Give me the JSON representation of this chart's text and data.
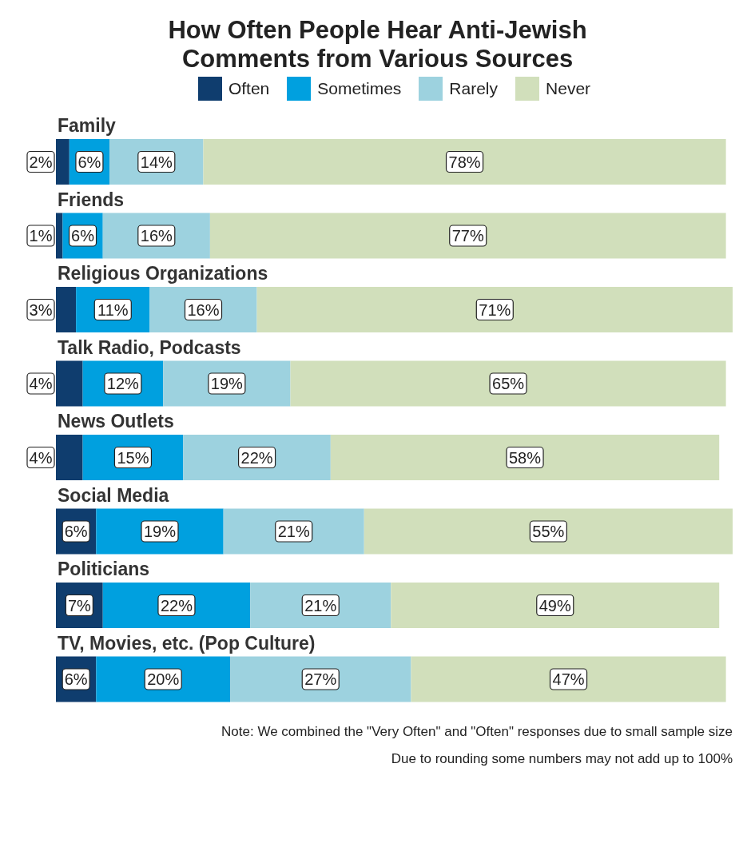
{
  "chart_data": {
    "type": "bar",
    "orientation": "horizontal",
    "stacked": true,
    "title": "How Often People Hear Anti-Jewish Comments from Various Sources",
    "legend": "top",
    "categories": [
      "Family",
      "Friends",
      "Religious Organizations",
      "Talk Radio, Podcasts",
      "News Outlets",
      "Social Media",
      "Politicians",
      "TV, Movies, etc. (Pop Culture)"
    ],
    "series": [
      {
        "name": "Often",
        "color": "#0f3d6e",
        "values": [
          2,
          1,
          3,
          4,
          4,
          6,
          7,
          6
        ],
        "value_labels": [
          "2%",
          "1%",
          "3%",
          "4%",
          "4%",
          "6%",
          "7%",
          "6%"
        ]
      },
      {
        "name": "Sometimes",
        "color": "#00a0df",
        "values": [
          6,
          6,
          11,
          12,
          15,
          19,
          22,
          20
        ],
        "value_labels": [
          "6%",
          "6%",
          "11%",
          "12%",
          "15%",
          "19%",
          "22%",
          "20%"
        ]
      },
      {
        "name": "Rarely",
        "color": "#9dd2df",
        "values": [
          14,
          16,
          16,
          19,
          22,
          21,
          21,
          27
        ],
        "value_labels": [
          "14%",
          "16%",
          "16%",
          "19%",
          "22%",
          "21%",
          "21%",
          "27%"
        ]
      },
      {
        "name": "Never",
        "color": "#d1dfbb",
        "values": [
          78,
          77,
          71,
          65,
          58,
          55,
          49,
          47
        ],
        "value_labels": [
          "78%",
          "77%",
          "71%",
          "65%",
          "58%",
          "55%",
          "49%",
          "47%"
        ]
      }
    ],
    "annotations": [
      "Note: We combined the \"Very Often\" and \"Often\" responses due to small sample size",
      "Due to rounding some numbers may not add up to 100%"
    ]
  }
}
